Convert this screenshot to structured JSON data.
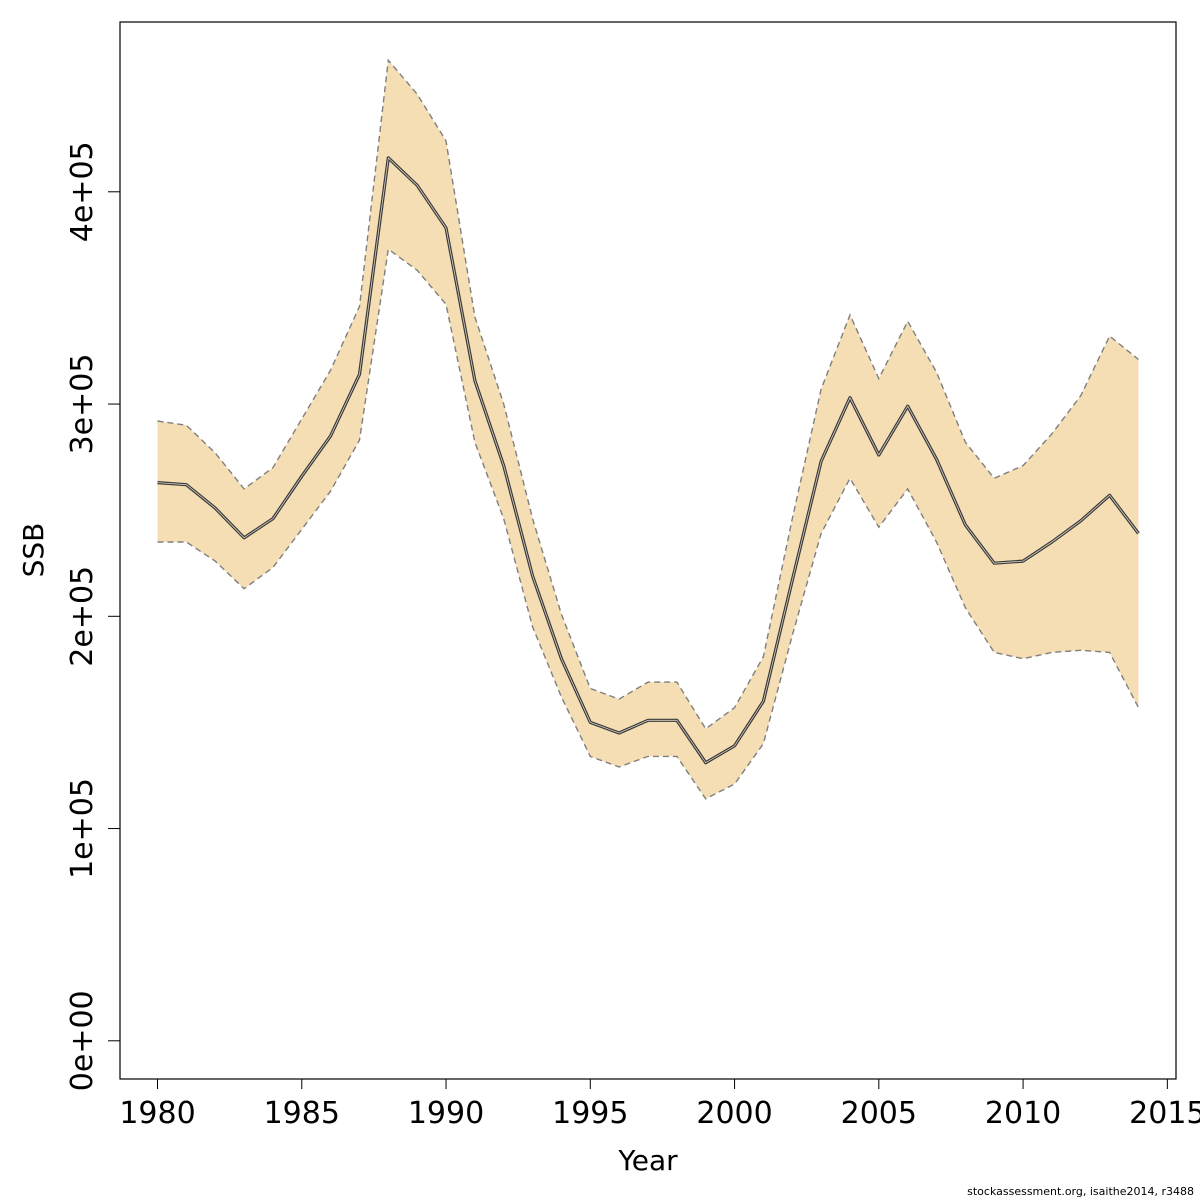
{
  "chart_data": {
    "type": "line",
    "xlabel": "Year",
    "ylabel": "SSB",
    "xlim": [
      1978.7,
      2015.3
    ],
    "ylim": [
      -18000,
      480000
    ],
    "x_ticks": [
      1980,
      1985,
      1990,
      1995,
      2000,
      2005,
      2010,
      2015
    ],
    "x_tick_labels": [
      "1980",
      "1985",
      "1990",
      "1995",
      "2000",
      "2005",
      "2010",
      "2015"
    ],
    "y_ticks": [
      0,
      100000,
      200000,
      300000,
      400000
    ],
    "y_tick_labels": [
      "0e+00",
      "1e+05",
      "2e+05",
      "3e+05",
      "4e+05"
    ],
    "x": [
      1980,
      1981,
      1982,
      1983,
      1984,
      1985,
      1986,
      1987,
      1988,
      1989,
      1990,
      1991,
      1992,
      1993,
      1994,
      1995,
      1996,
      1997,
      1998,
      1999,
      2000,
      2001,
      2002,
      2003,
      2004,
      2005,
      2006,
      2007,
      2008,
      2009,
      2010,
      2011,
      2012,
      2013,
      2014
    ],
    "series": [
      {
        "values": [
          263000,
          262000,
          251000,
          237000,
          246000,
          266000,
          285000,
          314000,
          416000,
          403000,
          383000,
          311000,
          271000,
          219000,
          180000,
          150000,
          145000,
          151000,
          151000,
          131000,
          139000,
          160000,
          217000,
          273000,
          303000,
          276000,
          299000,
          274000,
          243000,
          225000,
          226000,
          235000,
          245000,
          257000,
          239000
        ],
        "lower": [
          235000,
          235000,
          226000,
          213000,
          223000,
          241000,
          259000,
          283000,
          373000,
          363000,
          347000,
          282000,
          246000,
          195000,
          162000,
          134000,
          129000,
          134000,
          134000,
          114000,
          121000,
          140000,
          191000,
          239000,
          265000,
          242000,
          260000,
          235000,
          204000,
          183000,
          180000,
          183000,
          184000,
          183000,
          157000
        ],
        "upper": [
          292000,
          290000,
          277000,
          260000,
          270000,
          293000,
          316000,
          346000,
          462000,
          446000,
          424000,
          341000,
          300000,
          246000,
          201000,
          166000,
          161000,
          169000,
          169000,
          147000,
          157000,
          181000,
          246000,
          307000,
          342000,
          312000,
          339000,
          315000,
          282000,
          265000,
          271000,
          286000,
          304000,
          332000,
          321000
        ]
      }
    ],
    "colors": {
      "band_fill": "#F5DEB3",
      "band_border": "#7f7f7f",
      "line": "#3a3a3a",
      "axis": "#000000"
    },
    "grid": false,
    "legend": "none"
  },
  "footer": {
    "text": "stockassessment.org, isaithe2014, r3488"
  }
}
